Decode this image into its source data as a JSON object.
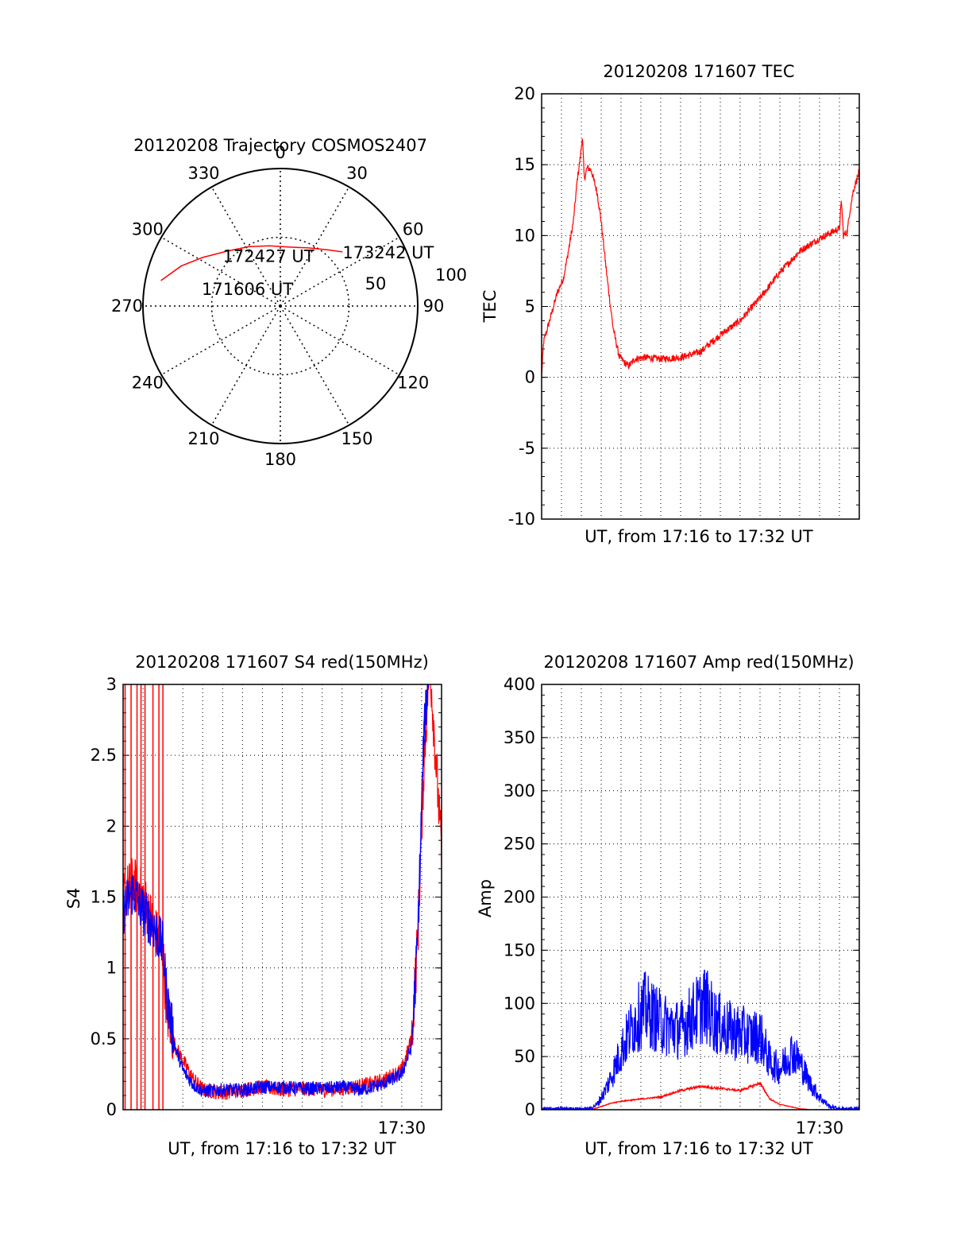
{
  "chart_data": [
    {
      "type": "polar",
      "title": "20120208 Trajectory COSMOS2407",
      "angle_ticks": [
        "0",
        "30",
        "60",
        "90",
        "120",
        "150",
        "180",
        "210",
        "240",
        "270",
        "300",
        "330"
      ],
      "radius_labels": [
        "50",
        "100"
      ],
      "trajectory": [
        {
          "az": 282,
          "el": 10
        },
        {
          "az": 292,
          "el": 20
        },
        {
          "az": 302,
          "el": 30
        },
        {
          "az": 316,
          "el": 40
        },
        {
          "az": 332,
          "el": 46
        },
        {
          "az": 350,
          "el": 50
        },
        {
          "az": 8,
          "el": 51
        },
        {
          "az": 25,
          "el": 48
        },
        {
          "az": 40,
          "el": 42
        },
        {
          "az": 49,
          "el": 36
        }
      ],
      "annotations": [
        {
          "text": "173242 UT",
          "az": 49,
          "el": 36
        },
        {
          "text": "172427 UT",
          "az": 345,
          "el": 60
        },
        {
          "text": "171606 UT",
          "az": 278,
          "el": 38
        }
      ],
      "colors": {
        "trajectory": "#ff0000"
      }
    },
    {
      "type": "line",
      "title": "20120208 171607 TEC",
      "xlabel": "UT, from 17:16 to 17:32 UT",
      "ylabel": "TEC",
      "ylim": [
        -10,
        20
      ],
      "yticks": [
        "-10",
        "-5",
        "0",
        "5",
        "10",
        "15",
        "20"
      ],
      "xlim_minutes": [
        0,
        16
      ],
      "grid": true,
      "series": [
        {
          "color": "#ff0000",
          "noise": 0.25,
          "points": [
            [
              0,
              0
            ],
            [
              0.1,
              2.5
            ],
            [
              0.3,
              3.5
            ],
            [
              0.5,
              4.5
            ],
            [
              0.8,
              6.0
            ],
            [
              1.1,
              7.0
            ],
            [
              1.3,
              8.5
            ],
            [
              1.6,
              11.0
            ],
            [
              1.8,
              14.0
            ],
            [
              1.95,
              15.5
            ],
            [
              2.05,
              17.0
            ],
            [
              2.15,
              14.0
            ],
            [
              2.3,
              14.8
            ],
            [
              2.5,
              14.6
            ],
            [
              2.8,
              13.0
            ],
            [
              3.0,
              11.0
            ],
            [
              3.3,
              7.0
            ],
            [
              3.6,
              3.5
            ],
            [
              3.9,
              1.5
            ],
            [
              4.2,
              1.0
            ],
            [
              4.4,
              0.8
            ],
            [
              4.7,
              1.3
            ],
            [
              5.2,
              1.4
            ],
            [
              6.0,
              1.3
            ],
            [
              7.0,
              1.4
            ],
            [
              8.0,
              1.8
            ],
            [
              9.0,
              3.0
            ],
            [
              10.0,
              4.0
            ],
            [
              11.0,
              5.6
            ],
            [
              12.0,
              7.4
            ],
            [
              13.0,
              8.9
            ],
            [
              14.0,
              9.8
            ],
            [
              14.7,
              10.3
            ],
            [
              15.0,
              10.5
            ],
            [
              15.1,
              12.5
            ],
            [
              15.2,
              10.0
            ],
            [
              15.4,
              10.3
            ],
            [
              15.5,
              11.5
            ],
            [
              15.7,
              13.2
            ],
            [
              16.0,
              14.5
            ]
          ]
        }
      ]
    },
    {
      "type": "line",
      "title": "20120208 171607 S4 red(150MHz)",
      "xlabel": "UT, from 17:16 to 17:32 UT",
      "ylabel": "S4",
      "ylim": [
        0,
        3
      ],
      "yticks": [
        "0",
        "0.5",
        "1",
        "1.5",
        "2",
        "2.5",
        "3"
      ],
      "xlim_minutes": [
        0,
        16
      ],
      "xtick_label": {
        "text": "17:30",
        "minute": 14
      },
      "grid": true,
      "series": [
        {
          "color": "#ff0000",
          "noise": 0.09,
          "spikes": [
            0.1,
            0.4,
            0.7,
            0.9,
            1.1,
            1.5,
            1.8,
            2.0
          ],
          "points": [
            [
              0,
              1.5
            ],
            [
              0.5,
              1.6
            ],
            [
              1.0,
              1.5
            ],
            [
              1.5,
              1.3
            ],
            [
              2.0,
              1.1
            ],
            [
              2.2,
              0.7
            ],
            [
              2.6,
              0.45
            ],
            [
              3.0,
              0.35
            ],
            [
              3.5,
              0.22
            ],
            [
              4.0,
              0.14
            ],
            [
              5.0,
              0.12
            ],
            [
              6.0,
              0.14
            ],
            [
              7.0,
              0.16
            ],
            [
              8.0,
              0.14
            ],
            [
              9.0,
              0.15
            ],
            [
              10.0,
              0.14
            ],
            [
              11.0,
              0.15
            ],
            [
              12.0,
              0.17
            ],
            [
              13.0,
              0.2
            ],
            [
              14.0,
              0.28
            ],
            [
              14.5,
              0.5
            ],
            [
              14.8,
              1.2
            ],
            [
              15.1,
              2.4
            ],
            [
              15.4,
              3.2
            ],
            [
              16.0,
              1.8
            ]
          ]
        },
        {
          "color": "#0000ff",
          "noise": 0.08,
          "points": [
            [
              0,
              1.4
            ],
            [
              0.5,
              1.55
            ],
            [
              1.0,
              1.4
            ],
            [
              1.5,
              1.3
            ],
            [
              2.0,
              1.15
            ],
            [
              2.2,
              0.8
            ],
            [
              2.6,
              0.45
            ],
            [
              3.0,
              0.28
            ],
            [
              3.5,
              0.18
            ],
            [
              4.0,
              0.13
            ],
            [
              5.0,
              0.14
            ],
            [
              6.0,
              0.14
            ],
            [
              7.0,
              0.16
            ],
            [
              8.0,
              0.16
            ],
            [
              9.0,
              0.15
            ],
            [
              10.0,
              0.15
            ],
            [
              11.0,
              0.16
            ],
            [
              12.0,
              0.14
            ],
            [
              13.0,
              0.18
            ],
            [
              14.0,
              0.25
            ],
            [
              14.5,
              0.45
            ],
            [
              14.8,
              1.2
            ],
            [
              15.1,
              2.6
            ],
            [
              15.4,
              3.2
            ],
            [
              16.0,
              3.2
            ]
          ]
        }
      ]
    },
    {
      "type": "line",
      "title": "20120208 171607 Amp red(150MHz)",
      "xlabel": "UT, from 17:16 to 17:32 UT",
      "ylabel": "Amp",
      "ylim": [
        0,
        400
      ],
      "yticks": [
        "0",
        "50",
        "100",
        "150",
        "200",
        "250",
        "300",
        "350",
        "400"
      ],
      "xlim_minutes": [
        0,
        16
      ],
      "xtick_label": {
        "text": "17:30",
        "minute": 14
      },
      "grid": true,
      "series": [
        {
          "color": "#ff0000",
          "noise": 3,
          "points": [
            [
              0,
              0
            ],
            [
              2.5,
              0
            ],
            [
              3.0,
              3
            ],
            [
              3.5,
              6
            ],
            [
              4.0,
              8
            ],
            [
              5.0,
              10
            ],
            [
              6.0,
              12
            ],
            [
              7.0,
              18
            ],
            [
              8.0,
              22
            ],
            [
              9.0,
              20
            ],
            [
              10.0,
              18
            ],
            [
              11.0,
              25
            ],
            [
              11.5,
              10
            ],
            [
              12.0,
              5
            ],
            [
              12.5,
              3
            ],
            [
              13.0,
              1
            ],
            [
              13.5,
              0
            ],
            [
              16,
              0
            ]
          ]
        },
        {
          "color": "#0000ff",
          "noise": 22,
          "points": [
            [
              0,
              1
            ],
            [
              2.4,
              1
            ],
            [
              2.8,
              5
            ],
            [
              3.2,
              18
            ],
            [
              3.6,
              35
            ],
            [
              4.0,
              55
            ],
            [
              4.6,
              80
            ],
            [
              5.2,
              95
            ],
            [
              5.8,
              85
            ],
            [
              6.4,
              78
            ],
            [
              7.0,
              75
            ],
            [
              7.6,
              88
            ],
            [
              8.2,
              100
            ],
            [
              8.8,
              82
            ],
            [
              9.4,
              75
            ],
            [
              10.0,
              72
            ],
            [
              10.6,
              68
            ],
            [
              11.0,
              70
            ],
            [
              11.5,
              45
            ],
            [
              12.0,
              38
            ],
            [
              12.6,
              55
            ],
            [
              13.0,
              45
            ],
            [
              13.5,
              25
            ],
            [
              14.0,
              12
            ],
            [
              14.5,
              3
            ],
            [
              15.0,
              1
            ],
            [
              16.0,
              1
            ]
          ]
        }
      ]
    }
  ]
}
